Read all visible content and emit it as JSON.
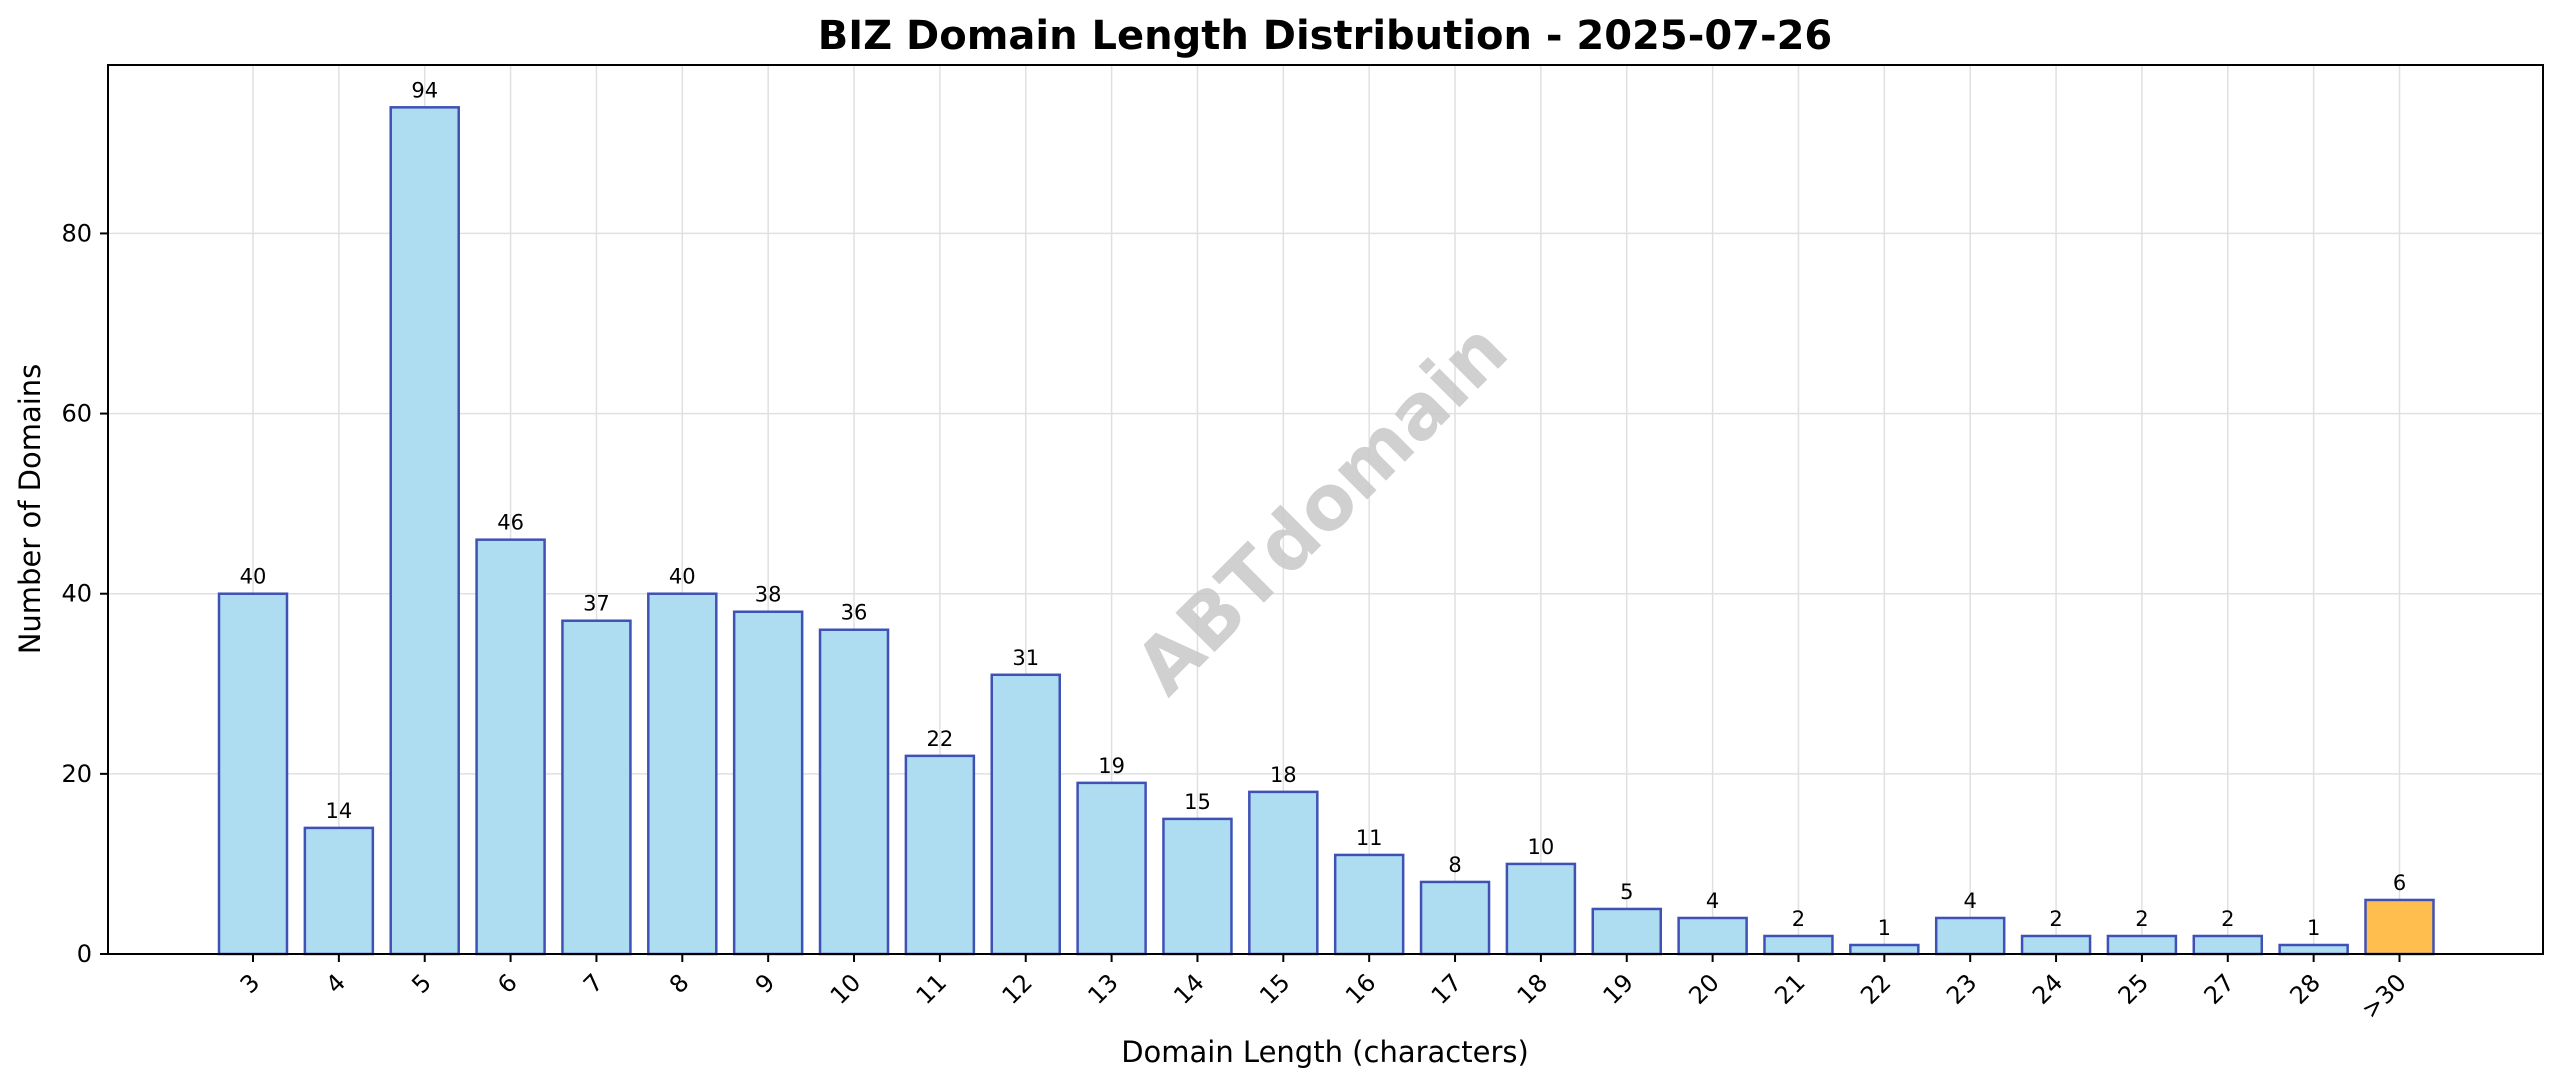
{
  "chart_data": {
    "type": "bar",
    "title": "BIZ Domain Length Distribution - 2025-07-26",
    "xlabel": "Domain Length (characters)",
    "ylabel": "Number of Domains",
    "categories": [
      "3",
      "4",
      "5",
      "6",
      "7",
      "8",
      "9",
      "10",
      "11",
      "12",
      "13",
      "14",
      "15",
      "16",
      "17",
      "18",
      "19",
      "20",
      "21",
      "22",
      "23",
      "24",
      "25",
      "27",
      "28",
      ">30"
    ],
    "values": [
      40,
      14,
      94,
      46,
      37,
      40,
      38,
      36,
      22,
      31,
      19,
      15,
      18,
      11,
      8,
      10,
      5,
      4,
      2,
      1,
      4,
      2,
      2,
      2,
      1,
      6
    ],
    "ylim": [
      0,
      98.7
    ],
    "yticks": [
      0,
      20,
      40,
      60,
      80
    ],
    "grid": true,
    "legend": "none",
    "watermark": "ABTdomain",
    "colors": {
      "bar": "#aedcf0",
      "bar_edge": "#3f51b5",
      "highlight_bar": "#ffbe4d",
      "highlight_edge": "#3f51b5",
      "highlight_category": ">30",
      "grid": "#e0e0e0"
    }
  }
}
